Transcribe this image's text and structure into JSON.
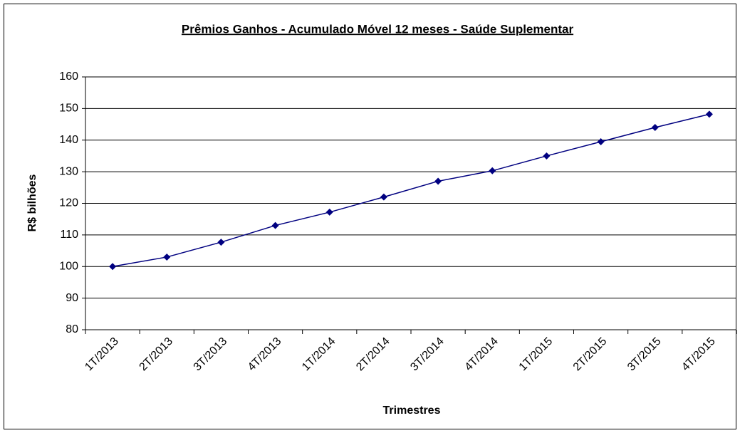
{
  "chart_data": {
    "type": "line",
    "title": "Prêmios Ganhos - Acumulado Móvel 12 meses - Saúde Suplementar",
    "y_label": "R$ bilhões",
    "x_label": "Trimestres",
    "categories": [
      "1T/2013",
      "2T/2013",
      "3T/2013",
      "4T/2013",
      "1T/2014",
      "2T/2014",
      "3T/2014",
      "4T/2014",
      "1T/2015",
      "2T/2015",
      "3T/2015",
      "4T/2015"
    ],
    "series": [
      {
        "color": "#000080",
        "values": [
          100,
          103,
          107.7,
          113,
          117.2,
          122,
          127,
          130.3,
          135,
          139.5,
          144,
          148.2
        ]
      }
    ],
    "ylim": [
      80,
      160
    ],
    "yticks": [
      80,
      90,
      100,
      110,
      120,
      130,
      140,
      150,
      160
    ],
    "grid": true
  }
}
